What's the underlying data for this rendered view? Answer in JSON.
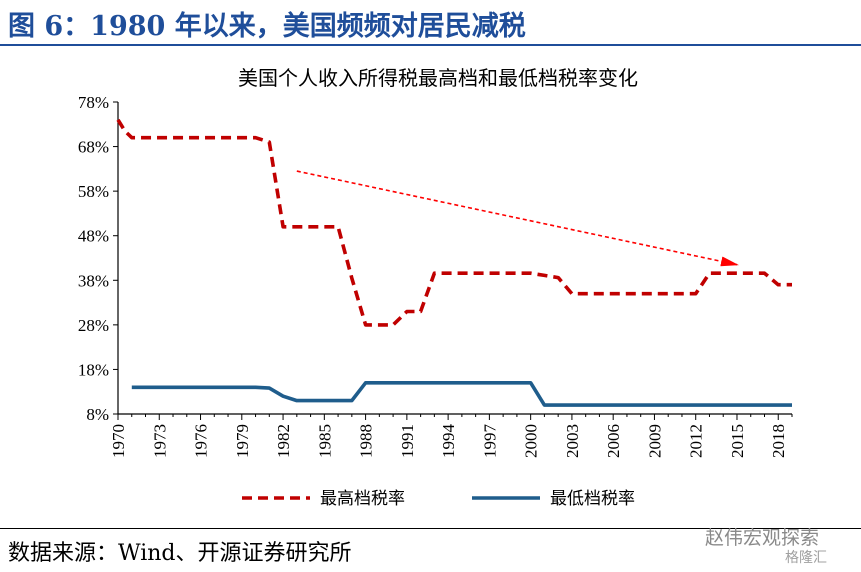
{
  "figure": {
    "title": "图 6：1980 年以来，美国频频对居民减税",
    "source": "数据来源：Wind、开源证券研究所",
    "watermark": "赵伟宏观探索",
    "watermark_sub": "格隆汇"
  },
  "chart_data": {
    "type": "line",
    "title": "美国个人收入所得税最高档和最低档税率变化",
    "xlabel": "",
    "ylabel": "",
    "xlim": [
      1970,
      2019
    ],
    "ylim": [
      8,
      78
    ],
    "x_ticks": [
      1970,
      1973,
      1976,
      1979,
      1982,
      1985,
      1988,
      1991,
      1994,
      1997,
      2000,
      2003,
      2006,
      2009,
      2012,
      2015,
      2018
    ],
    "y_ticks": [
      8,
      18,
      28,
      38,
      48,
      58,
      68,
      78
    ],
    "y_tick_labels": [
      "8%",
      "18%",
      "28%",
      "38%",
      "48%",
      "58%",
      "68%",
      "78%"
    ],
    "grid": false,
    "legend_position": "bottom",
    "series": [
      {
        "name": "最高档税率",
        "color": "#c00000",
        "dash": "dashed",
        "points": [
          [
            1970,
            74
          ],
          [
            1970.5,
            71.5
          ],
          [
            1971,
            70
          ],
          [
            1980,
            70
          ],
          [
            1981,
            69
          ],
          [
            1982,
            50
          ],
          [
            1986,
            50
          ],
          [
            1987,
            38.5
          ],
          [
            1988,
            28
          ],
          [
            1990,
            28
          ],
          [
            1991,
            31
          ],
          [
            1992,
            31
          ],
          [
            1993,
            39.6
          ],
          [
            2000,
            39.6
          ],
          [
            2001,
            39.1
          ],
          [
            2002,
            38.6
          ],
          [
            2003,
            35
          ],
          [
            2012,
            35
          ],
          [
            2013,
            39.6
          ],
          [
            2017,
            39.6
          ],
          [
            2018,
            37
          ],
          [
            2019,
            37
          ]
        ]
      },
      {
        "name": "最低档税率",
        "color": "#1f5d8c",
        "dash": "solid",
        "points": [
          [
            1971,
            14
          ],
          [
            1980,
            14
          ],
          [
            1981,
            13.8
          ],
          [
            1982,
            12
          ],
          [
            1983,
            11
          ],
          [
            1987,
            11
          ],
          [
            1988,
            15
          ],
          [
            2000,
            15
          ],
          [
            2001,
            10
          ],
          [
            2019,
            10
          ]
        ]
      }
    ],
    "annotations": [
      {
        "type": "arrow",
        "color": "#ff0000",
        "from": [
          1983,
          62.5
        ],
        "to": [
          2015,
          41.5
        ]
      }
    ]
  }
}
